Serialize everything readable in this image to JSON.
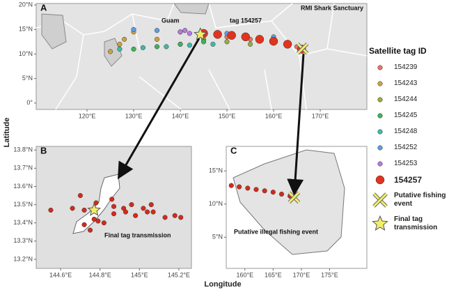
{
  "chart_data": [
    {
      "type": "scatter",
      "panel": "A",
      "x_label": "Longitude",
      "y_label": "Latitude",
      "xlim": [
        109.1,
        180
      ],
      "ylim": [
        -1.3,
        20.3
      ],
      "xticks": [
        {
          "value": 120,
          "label": "120°E"
        },
        {
          "value": 130,
          "label": "130°E"
        },
        {
          "value": 140,
          "label": "140°E"
        },
        {
          "value": 150,
          "label": "150°E"
        },
        {
          "value": 160,
          "label": "160°E"
        },
        {
          "value": 170,
          "label": "170°E"
        }
      ],
      "yticks": [
        {
          "value": 0,
          "label": "0°"
        },
        {
          "value": 5,
          "label": "5°N"
        },
        {
          "value": 10,
          "label": "10°N"
        },
        {
          "value": 15,
          "label": "15°N"
        },
        {
          "value": 20,
          "label": "20°N"
        }
      ],
      "legend_title": "Satellite tag ID",
      "annotations": [
        "Guam",
        "tag 154257",
        "RMI Shark Sanctuary"
      ],
      "series": [
        {
          "name": "154239",
          "color": "#e8736c",
          "marker": "circle",
          "x": [
            150,
            155,
            160,
            163,
            165
          ],
          "values": [
            13.5,
            13,
            12.5,
            12,
            11.5
          ]
        },
        {
          "name": "154243",
          "color": "#c9a243",
          "marker": "circle",
          "x": [
            125,
            127,
            128,
            130,
            135
          ],
          "values": [
            10.5,
            12,
            13,
            14.5,
            13
          ]
        },
        {
          "name": "154244",
          "color": "#93b13c",
          "marker": "circle",
          "x": [
            140,
            145,
            150,
            155
          ],
          "values": [
            12,
            13,
            12.5,
            12
          ]
        },
        {
          "name": "154245",
          "color": "#3fb35a",
          "marker": "circle",
          "x": [
            130,
            135,
            140,
            145
          ],
          "values": [
            11,
            11.5,
            12,
            12.5
          ]
        },
        {
          "name": "154248",
          "color": "#3fbaa6",
          "marker": "circle",
          "x": [
            127,
            132,
            137,
            142,
            147
          ],
          "values": [
            11,
            11.3,
            11.5,
            11.8,
            12
          ]
        },
        {
          "name": "154252",
          "color": "#5f9de0",
          "marker": "circle",
          "x": [
            130,
            135,
            140,
            150,
            160
          ],
          "values": [
            15,
            14.8,
            14.5,
            14.2,
            13.5
          ]
        },
        {
          "name": "154253",
          "color": "#b57be0",
          "marker": "circle",
          "x": [
            140,
            141,
            142
          ],
          "values": [
            14.5,
            14.8,
            14.2
          ]
        },
        {
          "name": "154257",
          "color": "#e0341f",
          "marker": "big-circle",
          "x": [
            145,
            148,
            151,
            154,
            157,
            160,
            163,
            166
          ],
          "values": [
            14.2,
            14,
            13.8,
            13.5,
            13,
            12.6,
            12,
            11
          ]
        },
        {
          "name": "Putative fishing event",
          "color": "#f3ee6a",
          "marker": "x",
          "x": [
            166.2
          ],
          "values": [
            11.1
          ]
        },
        {
          "name": "Final tag transmission",
          "color": "#f3ee6a",
          "marker": "star",
          "x": [
            144.3
          ],
          "values": [
            14
          ]
        }
      ]
    },
    {
      "type": "scatter",
      "panel": "B",
      "xlim": [
        144.476,
        145.264
      ],
      "ylim": [
        13.15,
        13.82
      ],
      "xticks": [
        {
          "value": 144.6,
          "label": "144.6°E"
        },
        {
          "value": 144.8,
          "label": "144.8°E"
        },
        {
          "value": 145,
          "label": "145°E"
        },
        {
          "value": 145.2,
          "label": "145.2°E"
        }
      ],
      "yticks": [
        {
          "value": 13.2,
          "label": "13.2°N"
        },
        {
          "value": 13.3,
          "label": "13.3°N"
        },
        {
          "value": 13.4,
          "label": "13.4°N"
        },
        {
          "value": 13.5,
          "label": "13.5°N"
        },
        {
          "value": 13.6,
          "label": "13.6°N"
        },
        {
          "value": 13.7,
          "label": "13.7°N"
        },
        {
          "value": 13.8,
          "label": "13.8°N"
        }
      ],
      "annotations": [
        "Final tag transmission"
      ],
      "series": [
        {
          "name": "154257",
          "color": "#d42a1c",
          "marker": "circle",
          "x": [
            144.55,
            144.66,
            144.7,
            144.72,
            144.78,
            144.86,
            144.87,
            144.87,
            144.92,
            144.93,
            144.96,
            144.98,
            145.02,
            145.04,
            145.06,
            145.07,
            145.13,
            145.18,
            145.21,
            144.72,
            144.75,
            144.79,
            144.82,
            144.77
          ],
          "values": [
            13.47,
            13.48,
            13.55,
            13.47,
            13.51,
            13.53,
            13.49,
            13.45,
            13.48,
            13.46,
            13.5,
            13.44,
            13.48,
            13.46,
            13.5,
            13.46,
            13.43,
            13.44,
            13.43,
            13.39,
            13.36,
            13.41,
            13.4,
            13.42
          ]
        },
        {
          "name": "Final tag transmission",
          "color": "#f3ee6a",
          "marker": "star",
          "x": [
            144.77
          ],
          "values": [
            13.47
          ]
        }
      ]
    },
    {
      "type": "scatter",
      "panel": "C",
      "xlim": [
        156.7,
        181.6
      ],
      "ylim": [
        0.3,
        18.7
      ],
      "xticks": [
        {
          "value": 160,
          "label": "160°E"
        },
        {
          "value": 165,
          "label": "165°E"
        },
        {
          "value": 170,
          "label": "170°E"
        },
        {
          "value": 175,
          "label": "175°E"
        }
      ],
      "yticks": [
        {
          "value": 5,
          "label": "5°N"
        },
        {
          "value": 10,
          "label": "10°N"
        },
        {
          "value": 15,
          "label": "15°N"
        }
      ],
      "annotations": [
        "Putative illegal fishing event"
      ],
      "series": [
        {
          "name": "154257",
          "color": "#d42a1c",
          "marker": "circle",
          "x": [
            157.6,
            159,
            160.5,
            162,
            163.5,
            165,
            166.5,
            168
          ],
          "values": [
            12.8,
            12.6,
            12.4,
            12.2,
            12,
            11.8,
            11.5,
            11.2
          ]
        },
        {
          "name": "Putative fishing event",
          "color": "#f3ee6a",
          "marker": "x",
          "x": [
            168.7
          ],
          "values": [
            11
          ]
        }
      ]
    }
  ]
}
